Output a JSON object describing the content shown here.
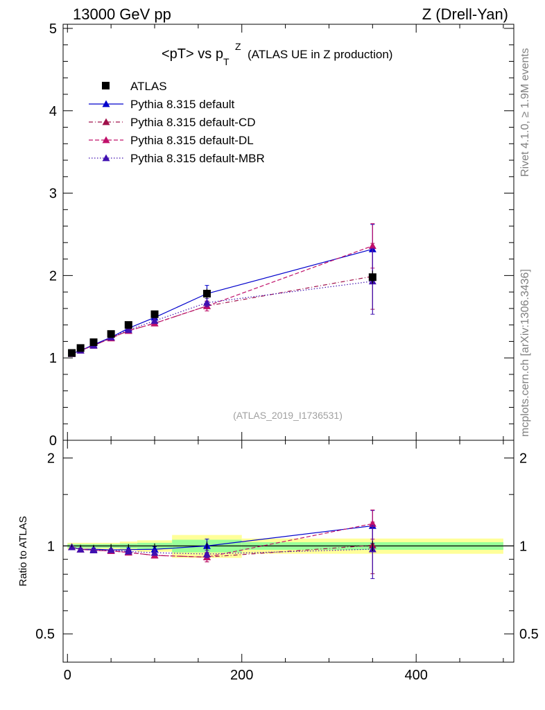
{
  "header": {
    "energy_label": "13000 GeV pp",
    "process_label": "Z (Drell-Yan)"
  },
  "side_labels": {
    "rivet": "Rivet 4.1.0, ≥ 1.9M events",
    "mcplots": "mcplots.cern.ch [arXiv:1306.3436]"
  },
  "chart_data": {
    "type": "scatter",
    "title_main": "<pT> vs p",
    "title_sup": "Z",
    "title_sub": "T",
    "title_suffix": "(ATLAS UE in Z production)",
    "analysis_label": "(ATLAS_2019_I1736531)",
    "ratio_ylabel": "Ratio to ATLAS",
    "xlim": [
      -5,
      512
    ],
    "ylim_main": [
      0,
      5.05
    ],
    "ylim_ratio": [
      0.4,
      2.3
    ],
    "x_ticks": [
      0,
      200,
      400
    ],
    "y_ticks_main": [
      0,
      1,
      2,
      3,
      4,
      5
    ],
    "y_ticks_ratio": [
      0.5,
      1,
      2
    ],
    "x": [
      5,
      15,
      30,
      50,
      70,
      100,
      160,
      350
    ],
    "band_edges": [
      0,
      10,
      20,
      40,
      60,
      80,
      120,
      200,
      500
    ],
    "band_inner": [
      0.015,
      0.015,
      0.015,
      0.015,
      0.02,
      0.025,
      0.05,
      0.03
    ],
    "band_outer": [
      0.025,
      0.025,
      0.025,
      0.025,
      0.035,
      0.045,
      0.09,
      0.06
    ],
    "series": [
      {
        "name": "ATLAS",
        "style": "data",
        "color": "#000000",
        "values": [
          1.06,
          1.12,
          1.19,
          1.29,
          1.4,
          1.53,
          1.78,
          1.98
        ],
        "errors": [
          0.01,
          0.01,
          0.01,
          0.02,
          0.02,
          0.03,
          0.06,
          0.08
        ]
      },
      {
        "name": "Pythia 8.315 default",
        "style": "solid",
        "color": "#0000cc",
        "values": [
          1.05,
          1.09,
          1.16,
          1.25,
          1.36,
          1.49,
          1.78,
          2.32
        ],
        "errors": [
          0.01,
          0.01,
          0.01,
          0.01,
          0.02,
          0.03,
          0.1,
          0.3
        ]
      },
      {
        "name": "Pythia 8.315 default-CD",
        "style": "dashdot",
        "color": "#a0104a",
        "values": [
          1.05,
          1.09,
          1.15,
          1.24,
          1.33,
          1.42,
          1.63,
          1.99
        ],
        "errors": [
          0.01,
          0.01,
          0.01,
          0.01,
          0.02,
          0.03,
          0.06,
          0.4
        ]
      },
      {
        "name": "Pythia 8.315 default-DL",
        "style": "dashed",
        "color": "#c0106a",
        "values": [
          1.05,
          1.09,
          1.15,
          1.24,
          1.33,
          1.42,
          1.63,
          2.36
        ],
        "errors": [
          0.01,
          0.01,
          0.01,
          0.01,
          0.02,
          0.03,
          0.06,
          0.27
        ]
      },
      {
        "name": "Pythia 8.315 default-MBR",
        "style": "dotted",
        "color": "#4010b0",
        "values": [
          1.05,
          1.09,
          1.15,
          1.25,
          1.34,
          1.45,
          1.67,
          1.93
        ],
        "errors": [
          0.01,
          0.01,
          0.01,
          0.01,
          0.02,
          0.03,
          0.05,
          0.4
        ]
      }
    ]
  }
}
